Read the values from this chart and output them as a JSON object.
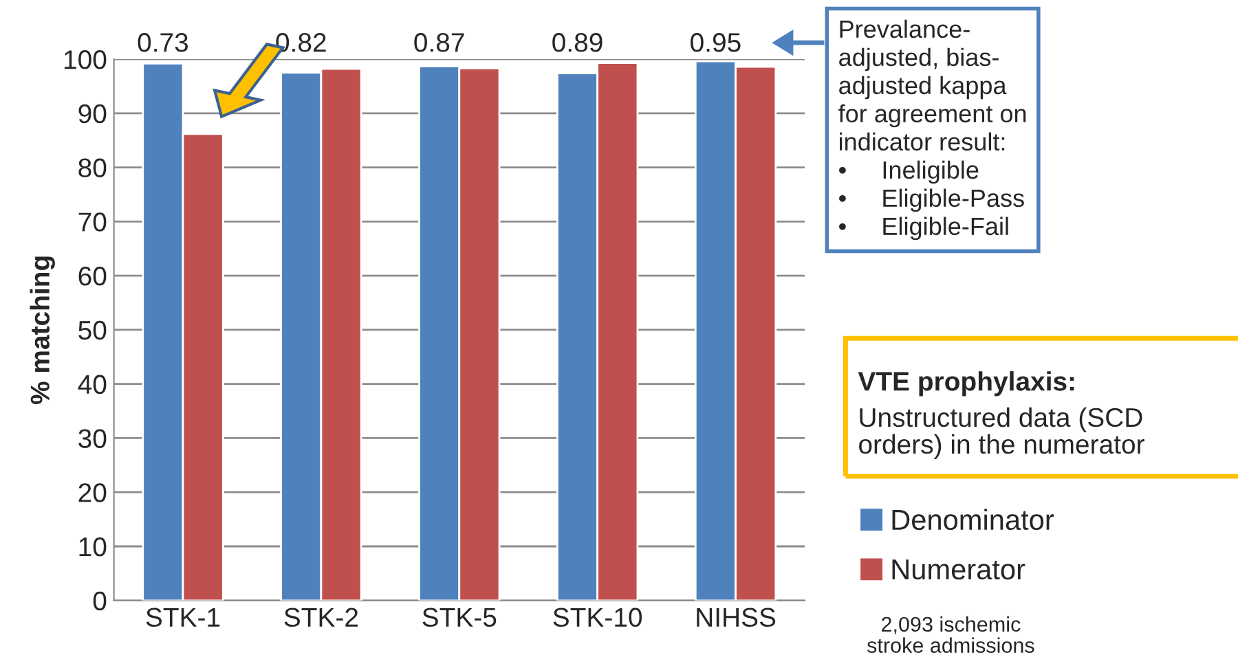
{
  "chart_data": {
    "type": "bar",
    "ylabel": "% matching",
    "categories": [
      "STK-1",
      "STK-2",
      "STK-5",
      "STK-10",
      "NIHSS"
    ],
    "series": [
      {
        "name": "Denominator",
        "color": "#4f81bd",
        "values": [
          99.2,
          97.5,
          98.7,
          97.4,
          99.6
        ]
      },
      {
        "name": "Numerator",
        "color": "#c0504d",
        "values": [
          86.2,
          98.2,
          98.3,
          99.3,
          98.6
        ]
      }
    ],
    "ylim": [
      0,
      100
    ],
    "yticks": [
      0,
      10,
      20,
      30,
      40,
      50,
      60,
      70,
      80,
      90,
      100
    ],
    "grid": "y",
    "legend": "bottom right",
    "annotations": [
      "0.73",
      "0.82",
      "0.87",
      "0.89",
      "0.95",
      "Prevalance-\nadjusted, bias-\nadjusted kappa\nfor agreement on\nindicator result:\n•     Ineligible\n•     Eligible-Pass\n•     Eligible-Fail",
      "VTE prophylaxis:",
      "Unstructured data (SCD\norders) in the numerator",
      "2,093 ischemic\nstroke admissions"
    ]
  }
}
